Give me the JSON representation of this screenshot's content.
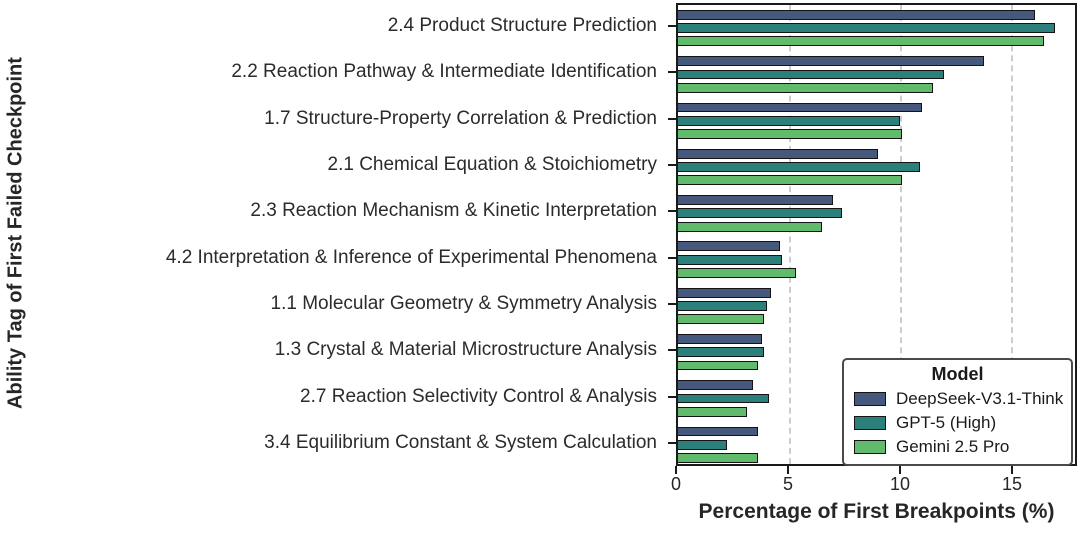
{
  "figure": {
    "x_axis_label": "Percentage of First Breakpoints (%)",
    "y_axis_label": "Ability Tag of First Failed Checkpoint"
  },
  "legend": {
    "title": "Model"
  },
  "chart_data": {
    "type": "bar",
    "orientation": "horizontal",
    "title": "",
    "xlabel": "Percentage of First Breakpoints (%)",
    "ylabel": "Ability Tag of First Failed Checkpoint",
    "xlim": [
      0,
      17.9
    ],
    "xticks": [
      0,
      5,
      10,
      15
    ],
    "xtick_labels": [
      "0",
      "5",
      "10",
      "15"
    ],
    "grid": "vertical-dashed",
    "legend_title": "Model",
    "legend_position": "lower-right",
    "categories": [
      "2.4 Product Structure Prediction",
      "2.2 Reaction Pathway & Intermediate Identification",
      "1.7 Structure-Property Correlation & Prediction",
      "2.1 Chemical Equation & Stoichiometry",
      "2.3 Reaction Mechanism & Kinetic Interpretation",
      "4.2 Interpretation & Inference of Experimental Phenomena",
      "1.1 Molecular Geometry & Symmetry Analysis",
      "1.3 Crystal & Material Microstructure Analysis",
      "2.7 Reaction Selectivity Control & Analysis",
      "3.4 Equilibrium Constant & System Calculation"
    ],
    "series": [
      {
        "name": "DeepSeek-V3.1-Think",
        "color": "#46587C",
        "values": [
          16.1,
          13.8,
          11.0,
          9.0,
          7.0,
          4.6,
          4.2,
          3.8,
          3.4,
          3.6
        ]
      },
      {
        "name": "GPT-5 (High)",
        "color": "#2B807B",
        "values": [
          17.0,
          12.0,
          10.0,
          10.9,
          7.4,
          4.7,
          4.0,
          3.9,
          4.1,
          2.2
        ]
      },
      {
        "name": "Gemini 2.5 Pro",
        "color": "#62BB6D",
        "values": [
          16.5,
          11.5,
          10.1,
          10.1,
          6.5,
          5.3,
          3.9,
          3.6,
          3.1,
          3.6
        ]
      }
    ],
    "colors": {
      "bar_border": "#141414",
      "grid": "#cdcdcd",
      "axis": "#1a1a1a",
      "text": "#262626"
    }
  }
}
